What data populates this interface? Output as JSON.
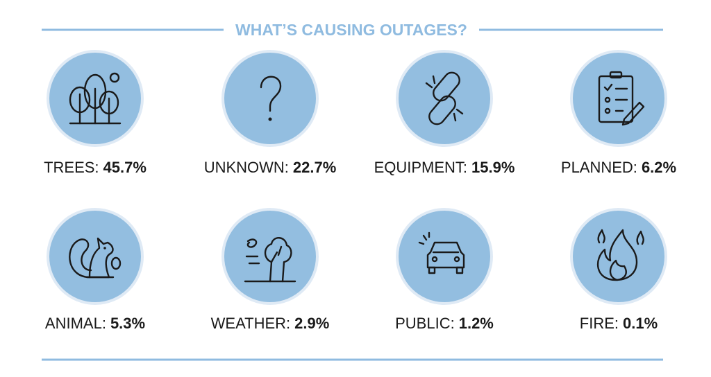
{
  "header": {
    "title": "WHAT’S CAUSING OUTAGES?"
  },
  "items": [
    {
      "label": "TREES:",
      "value": "45.7%"
    },
    {
      "label": "UNKNOWN:",
      "value": "22.7%"
    },
    {
      "label": "EQUIPMENT:",
      "value": "15.9%"
    },
    {
      "label": "PLANNED:",
      "value": "6.2%"
    },
    {
      "label": "ANIMAL:",
      "value": "5.3%"
    },
    {
      "label": "WEATHER:",
      "value": "2.9%"
    },
    {
      "label": "PUBLIC:",
      "value": "1.2%"
    },
    {
      "label": "FIRE:",
      "value": "0.1%"
    }
  ]
}
